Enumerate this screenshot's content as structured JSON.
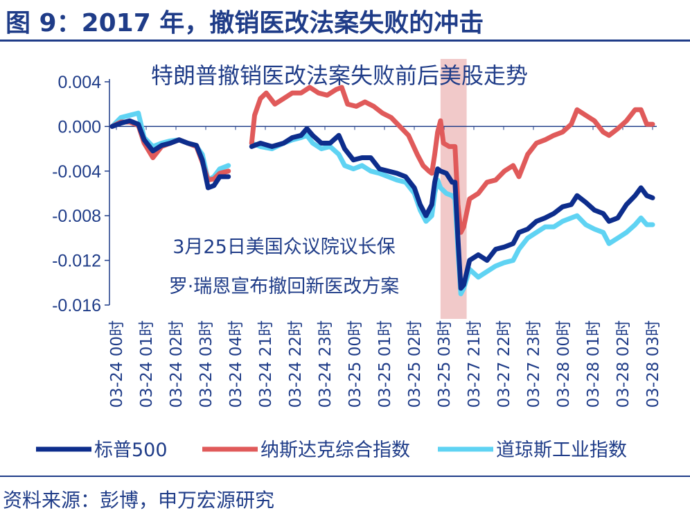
{
  "header": {
    "title": "图 9：2017 年，撤销医改法案失败的冲击"
  },
  "footer": {
    "source": "资料来源：彭博，申万宏源研究"
  },
  "colors": {
    "sp500": "#0d2d8c",
    "nasdaq": "#e05a5a",
    "dow": "#5fd3f3",
    "shade": "#efc0c0",
    "text": "#1f3c88"
  },
  "chart_data": {
    "type": "line",
    "title": "特朗普撤销医改法案失败前后美股走势",
    "ylim": [
      -0.016,
      0.004
    ],
    "yticks": [
      "0.004",
      "0.000",
      "-0.004",
      "-0.008",
      "-0.012",
      "-0.016"
    ],
    "ytick_values": [
      0.004,
      0.0,
      -0.004,
      -0.008,
      -0.012,
      -0.016
    ],
    "xticks": [
      "03-24 00时",
      "03-24 01时",
      "03-24 02时",
      "03-24 03时",
      "03-24 04时",
      "03-24 21时",
      "03-24 22时",
      "03-24 23时",
      "03-25 00时",
      "03-25 01时",
      "03-25 02时",
      "03-25 03时",
      "03-27 21时",
      "03-27 22时",
      "03-27 23时",
      "03-28 00时",
      "03-28 01时",
      "03-28 02时",
      "03-28 03时"
    ],
    "x_range": [
      0,
      18.6
    ],
    "shade_x": [
      11.3,
      12.2
    ],
    "annotation": [
      "3月25日美国众议院议长保",
      "罗·瑞恩宣布撤回新医改方案"
    ],
    "legend": [
      "标普500",
      "纳斯达克综合指数",
      "道琼斯工业指数"
    ],
    "series": [
      {
        "name": "标普500",
        "points": [
          [
            0,
            0.0
          ],
          [
            0.3,
            0.0003
          ],
          [
            0.6,
            0.0005
          ],
          [
            0.9,
            0.0002
          ],
          [
            1.1,
            -0.0012
          ],
          [
            1.4,
            -0.0022
          ],
          [
            1.7,
            -0.0017
          ],
          [
            2.0,
            -0.0015
          ],
          [
            2.3,
            -0.0012
          ],
          [
            2.6,
            -0.0015
          ],
          [
            2.9,
            -0.0017
          ],
          [
            3.1,
            -0.003
          ],
          [
            3.3,
            -0.0055
          ],
          [
            3.5,
            -0.0053
          ],
          [
            3.7,
            -0.0045
          ],
          [
            4.0,
            -0.0045
          ],
          [
            null,
            null
          ],
          [
            4.8,
            -0.0018
          ],
          [
            5.1,
            -0.0015
          ],
          [
            5.5,
            -0.0018
          ],
          [
            5.9,
            -0.0015
          ],
          [
            6.2,
            -0.001
          ],
          [
            6.5,
            -0.0008
          ],
          [
            6.7,
            -0.0002
          ],
          [
            6.9,
            -0.0008
          ],
          [
            7.2,
            -0.0015
          ],
          [
            7.5,
            -0.0015
          ],
          [
            7.8,
            -0.0008
          ],
          [
            8.0,
            -0.002
          ],
          [
            8.3,
            -0.003
          ],
          [
            8.6,
            -0.0028
          ],
          [
            8.9,
            -0.0028
          ],
          [
            9.2,
            -0.0038
          ],
          [
            9.5,
            -0.004
          ],
          [
            9.8,
            -0.0042
          ],
          [
            10.1,
            -0.0045
          ],
          [
            10.4,
            -0.0055
          ],
          [
            10.6,
            -0.007
          ],
          [
            10.8,
            -0.008
          ],
          [
            11.0,
            -0.007
          ],
          [
            11.1,
            -0.005
          ],
          [
            11.2,
            -0.0038
          ],
          [
            11.3,
            -0.004
          ],
          [
            11.5,
            -0.0042
          ],
          [
            11.7,
            -0.005
          ],
          [
            11.8,
            -0.005
          ],
          [
            11.9,
            -0.01
          ],
          [
            12.0,
            -0.0145
          ],
          [
            12.1,
            -0.0142
          ],
          [
            12.3,
            -0.012
          ],
          [
            12.6,
            -0.0115
          ],
          [
            12.9,
            -0.012
          ],
          [
            13.2,
            -0.011
          ],
          [
            13.5,
            -0.0108
          ],
          [
            13.8,
            -0.0105
          ],
          [
            14.0,
            -0.0095
          ],
          [
            14.3,
            -0.0092
          ],
          [
            14.6,
            -0.0085
          ],
          [
            14.9,
            -0.0082
          ],
          [
            15.2,
            -0.0078
          ],
          [
            15.5,
            -0.0072
          ],
          [
            15.8,
            -0.007
          ],
          [
            16.0,
            -0.0062
          ],
          [
            16.3,
            -0.0068
          ],
          [
            16.6,
            -0.0075
          ],
          [
            16.9,
            -0.0078
          ],
          [
            17.1,
            -0.0085
          ],
          [
            17.4,
            -0.0082
          ],
          [
            17.7,
            -0.007
          ],
          [
            18.0,
            -0.0062
          ],
          [
            18.2,
            -0.0055
          ],
          [
            18.4,
            -0.0062
          ],
          [
            18.6,
            -0.0064
          ]
        ]
      },
      {
        "name": "纳斯达克综合指数",
        "points": [
          [
            0,
            0.0
          ],
          [
            0.3,
            0.0004
          ],
          [
            0.6,
            0.0004
          ],
          [
            0.9,
            0.0001
          ],
          [
            1.1,
            -0.0015
          ],
          [
            1.4,
            -0.0028
          ],
          [
            1.7,
            -0.0018
          ],
          [
            2.0,
            -0.0015
          ],
          [
            2.3,
            -0.0012
          ],
          [
            2.6,
            -0.0015
          ],
          [
            2.9,
            -0.0018
          ],
          [
            3.1,
            -0.0032
          ],
          [
            3.3,
            -0.0048
          ],
          [
            3.5,
            -0.0047
          ],
          [
            3.7,
            -0.0042
          ],
          [
            4.0,
            -0.004
          ],
          [
            null,
            null
          ],
          [
            4.8,
            -0.0015
          ],
          [
            4.9,
            0.001
          ],
          [
            5.1,
            0.0025
          ],
          [
            5.3,
            0.003
          ],
          [
            5.6,
            0.002
          ],
          [
            5.9,
            0.0025
          ],
          [
            6.2,
            0.003
          ],
          [
            6.5,
            0.003
          ],
          [
            6.8,
            0.0035
          ],
          [
            7.1,
            0.003
          ],
          [
            7.4,
            0.0028
          ],
          [
            7.7,
            0.0033
          ],
          [
            7.9,
            0.0035
          ],
          [
            8.1,
            0.002
          ],
          [
            8.4,
            0.0018
          ],
          [
            8.7,
            0.0022
          ],
          [
            9.0,
            0.0018
          ],
          [
            9.3,
            0.0012
          ],
          [
            9.6,
            0.0008
          ],
          [
            9.9,
            0.0
          ],
          [
            10.2,
            -0.0008
          ],
          [
            10.5,
            -0.0025
          ],
          [
            10.7,
            -0.0035
          ],
          [
            10.9,
            -0.004
          ],
          [
            11.0,
            -0.0042
          ],
          [
            11.1,
            -0.0025
          ],
          [
            11.2,
            -0.0005
          ],
          [
            11.3,
            0.0005
          ],
          [
            11.4,
            -0.0015
          ],
          [
            11.6,
            -0.0018
          ],
          [
            11.8,
            -0.0018
          ],
          [
            11.9,
            -0.007
          ],
          [
            12.0,
            -0.0095
          ],
          [
            12.1,
            -0.009
          ],
          [
            12.3,
            -0.0065
          ],
          [
            12.6,
            -0.006
          ],
          [
            12.9,
            -0.005
          ],
          [
            13.2,
            -0.0048
          ],
          [
            13.5,
            -0.004
          ],
          [
            13.8,
            -0.0035
          ],
          [
            14.0,
            -0.0045
          ],
          [
            14.3,
            -0.0025
          ],
          [
            14.6,
            -0.0015
          ],
          [
            14.9,
            -0.0012
          ],
          [
            15.2,
            -0.0008
          ],
          [
            15.5,
            -0.0005
          ],
          [
            15.8,
            0.0002
          ],
          [
            16.0,
            0.0015
          ],
          [
            16.3,
            0.001
          ],
          [
            16.6,
            0.0005
          ],
          [
            16.9,
            -0.0005
          ],
          [
            17.1,
            -0.0008
          ],
          [
            17.4,
            -0.0002
          ],
          [
            17.7,
            0.0005
          ],
          [
            18.0,
            0.0015
          ],
          [
            18.2,
            0.0015
          ],
          [
            18.4,
            0.0002
          ],
          [
            18.6,
            0.0002
          ]
        ]
      },
      {
        "name": "道琼斯工业指数",
        "points": [
          [
            0,
            0.0
          ],
          [
            0.3,
            0.0008
          ],
          [
            0.6,
            0.001
          ],
          [
            0.9,
            0.0012
          ],
          [
            1.1,
            -0.001
          ],
          [
            1.4,
            -0.0018
          ],
          [
            1.7,
            -0.0015
          ],
          [
            2.0,
            -0.0013
          ],
          [
            2.3,
            -0.0012
          ],
          [
            2.6,
            -0.0015
          ],
          [
            2.9,
            -0.0018
          ],
          [
            3.1,
            -0.0025
          ],
          [
            3.3,
            -0.0048
          ],
          [
            3.5,
            -0.0045
          ],
          [
            3.7,
            -0.0038
          ],
          [
            4.0,
            -0.0035
          ],
          [
            null,
            null
          ],
          [
            4.8,
            -0.0015
          ],
          [
            5.1,
            -0.0018
          ],
          [
            5.5,
            -0.002
          ],
          [
            5.9,
            -0.0015
          ],
          [
            6.2,
            -0.0012
          ],
          [
            6.5,
            -0.001
          ],
          [
            6.7,
            -0.0008
          ],
          [
            6.9,
            -0.0015
          ],
          [
            7.2,
            -0.002
          ],
          [
            7.5,
            -0.0018
          ],
          [
            7.8,
            -0.0025
          ],
          [
            8.0,
            -0.0035
          ],
          [
            8.3,
            -0.0038
          ],
          [
            8.6,
            -0.0035
          ],
          [
            8.9,
            -0.004
          ],
          [
            9.2,
            -0.0042
          ],
          [
            9.5,
            -0.0045
          ],
          [
            9.8,
            -0.0048
          ],
          [
            10.1,
            -0.005
          ],
          [
            10.4,
            -0.006
          ],
          [
            10.6,
            -0.0075
          ],
          [
            10.8,
            -0.0085
          ],
          [
            11.0,
            -0.008
          ],
          [
            11.1,
            -0.006
          ],
          [
            11.2,
            -0.0048
          ],
          [
            11.3,
            -0.0055
          ],
          [
            11.5,
            -0.006
          ],
          [
            11.7,
            -0.0062
          ],
          [
            11.8,
            -0.0065
          ],
          [
            11.9,
            -0.011
          ],
          [
            12.0,
            -0.015
          ],
          [
            12.1,
            -0.0145
          ],
          [
            12.3,
            -0.0128
          ],
          [
            12.6,
            -0.0135
          ],
          [
            12.9,
            -0.013
          ],
          [
            13.2,
            -0.0125
          ],
          [
            13.5,
            -0.0122
          ],
          [
            13.8,
            -0.012
          ],
          [
            14.0,
            -0.011
          ],
          [
            14.3,
            -0.01
          ],
          [
            14.6,
            -0.0095
          ],
          [
            14.9,
            -0.009
          ],
          [
            15.2,
            -0.009
          ],
          [
            15.5,
            -0.0085
          ],
          [
            15.8,
            -0.0082
          ],
          [
            16.0,
            -0.008
          ],
          [
            16.3,
            -0.0088
          ],
          [
            16.6,
            -0.0092
          ],
          [
            16.9,
            -0.0095
          ],
          [
            17.1,
            -0.0105
          ],
          [
            17.4,
            -0.01
          ],
          [
            17.7,
            -0.0095
          ],
          [
            18.0,
            -0.0088
          ],
          [
            18.2,
            -0.0082
          ],
          [
            18.4,
            -0.0088
          ],
          [
            18.6,
            -0.0088
          ]
        ]
      }
    ]
  }
}
